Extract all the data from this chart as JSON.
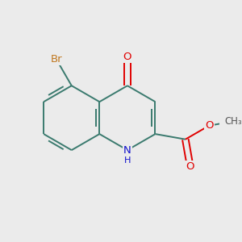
{
  "bg_color": "#ebebeb",
  "bond_color": "#3a7a6e",
  "bond_width": 1.4,
  "dbo": 0.055,
  "atom_colors": {
    "Br": "#c07820",
    "O": "#e00000",
    "N": "#1010cc",
    "C": "#3a7a6e",
    "H": "#1010cc"
  },
  "font_size": 9.5,
  "fig_size": [
    3.0,
    3.0
  ],
  "dpi": 100,
  "bl": 0.52
}
